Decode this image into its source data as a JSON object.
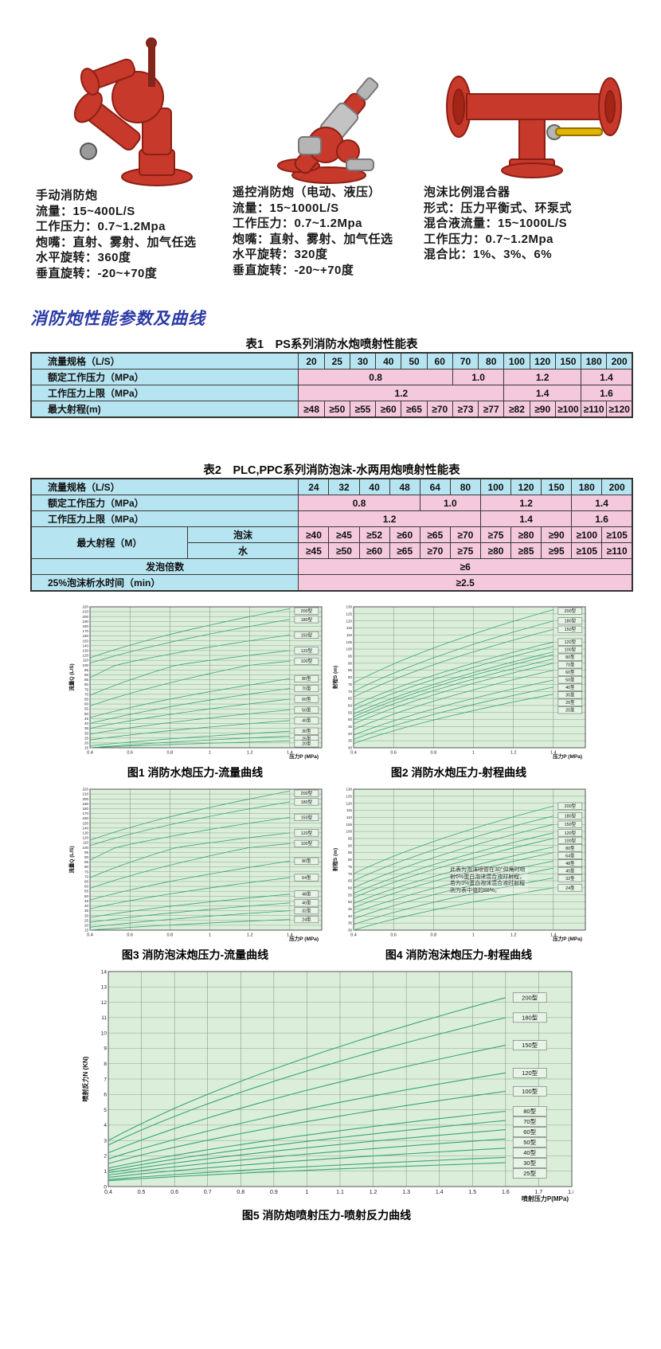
{
  "section_title": "消防炮性能参数及曲线",
  "colors": {
    "heading_blue": "#2b3aa5",
    "table_label_bg": "#b7e4f1",
    "table_value_bg": "#f4c9dd",
    "chart_bg": "#daeeda",
    "curve_green": "#3aa578",
    "product_red": "#c6392b",
    "valve_yellow": "#e0b400"
  },
  "products": [
    {
      "name": "手动消防炮",
      "image": "manual-fire-monitor",
      "specs": [
        "流量：15~400L/S",
        "工作压力：0.7~1.2Mpa",
        "炮嘴：直射、雾射、加气任选",
        "水平旋转：360度",
        "垂直旋转：-20~+70度"
      ]
    },
    {
      "name": "遥控消防炮（电动、液压）",
      "image": "remote-fire-monitor",
      "specs": [
        "流量：15~1000L/S",
        "工作压力：0.7~1.2Mpa",
        "炮嘴：直射、雾射、加气任选",
        "水平旋转：320度",
        "垂直旋转：-20~+70度"
      ]
    },
    {
      "name": "泡沫比例混合器",
      "image": "foam-proportioner",
      "specs": [
        "形式：压力平衡式、环泵式",
        "混合液流量：15~1000L/S",
        "工作压力：0.7~1.2Mpa",
        "混合比：1%、3%、6%"
      ]
    }
  ],
  "table1": {
    "title": "表1　PS系列消防水炮喷射性能表",
    "cols": [
      44.5,
      4.27,
      4.27,
      4.27,
      4.27,
      4.27,
      4.27,
      4.27,
      4.27,
      4.27,
      4.27,
      4.27,
      4.27,
      4.27
    ],
    "rows": [
      {
        "cells": [
          {
            "t": "流量规格（L/S）",
            "cls": "c l"
          },
          {
            "t": "20",
            "cls": "c"
          },
          {
            "t": "25",
            "cls": "c"
          },
          {
            "t": "30",
            "cls": "c"
          },
          {
            "t": "40",
            "cls": "c"
          },
          {
            "t": "50",
            "cls": "c"
          },
          {
            "t": "60",
            "cls": "c"
          },
          {
            "t": "70",
            "cls": "c"
          },
          {
            "t": "80",
            "cls": "c"
          },
          {
            "t": "100",
            "cls": "c"
          },
          {
            "t": "120",
            "cls": "c"
          },
          {
            "t": "150",
            "cls": "c"
          },
          {
            "t": "180",
            "cls": "c"
          },
          {
            "t": "200",
            "cls": "c"
          }
        ]
      },
      {
        "cells": [
          {
            "t": "额定工作压力（MPa）",
            "cls": "c l"
          },
          {
            "t": "0.8",
            "cls": "p",
            "span": 6
          },
          {
            "t": "1.0",
            "cls": "p",
            "span": 2
          },
          {
            "t": "1.2",
            "cls": "p",
            "span": 3
          },
          {
            "t": "1.4",
            "cls": "p",
            "span": 2
          }
        ]
      },
      {
        "cells": [
          {
            "t": "工作压力上限（MPa）",
            "cls": "c l"
          },
          {
            "t": "1.2",
            "cls": "p",
            "span": 8
          },
          {
            "t": "1.4",
            "cls": "p",
            "span": 3
          },
          {
            "t": "1.6",
            "cls": "p",
            "span": 2
          }
        ]
      },
      {
        "cells": [
          {
            "t": "最大射程(m)",
            "cls": "c l"
          },
          {
            "t": "≥48",
            "cls": "p"
          },
          {
            "t": "≥50",
            "cls": "p"
          },
          {
            "t": "≥55",
            "cls": "p"
          },
          {
            "t": "≥60",
            "cls": "p"
          },
          {
            "t": "≥65",
            "cls": "p"
          },
          {
            "t": "≥70",
            "cls": "p"
          },
          {
            "t": "≥73",
            "cls": "p"
          },
          {
            "t": "≥77",
            "cls": "p"
          },
          {
            "t": "≥82",
            "cls": "p"
          },
          {
            "t": "≥90",
            "cls": "p"
          },
          {
            "t": "≥100",
            "cls": "p"
          },
          {
            "t": "≥110",
            "cls": "p"
          },
          {
            "t": "≥120",
            "cls": "p"
          }
        ]
      }
    ]
  },
  "table2": {
    "title": "表2　PLC,PPC系列消防泡沫-水两用炮喷射性能表",
    "cols": [
      26,
      18.5,
      5.05,
      5.05,
      5.05,
      5.05,
      5.05,
      5.05,
      5.05,
      5.05,
      5.05,
      5.05,
      5.05
    ],
    "rows": [
      {
        "cells": [
          {
            "t": "流量规格（L/S）",
            "cls": "c l",
            "span": 2
          },
          {
            "t": "24",
            "cls": "c"
          },
          {
            "t": "32",
            "cls": "c"
          },
          {
            "t": "40",
            "cls": "c"
          },
          {
            "t": "48",
            "cls": "c"
          },
          {
            "t": "64",
            "cls": "c"
          },
          {
            "t": "80",
            "cls": "c"
          },
          {
            "t": "100",
            "cls": "c"
          },
          {
            "t": "120",
            "cls": "c"
          },
          {
            "t": "150",
            "cls": "c"
          },
          {
            "t": "180",
            "cls": "c"
          },
          {
            "t": "200",
            "cls": "c"
          }
        ]
      },
      {
        "cells": [
          {
            "t": "额定工作压力（MPa）",
            "cls": "c l",
            "span": 2
          },
          {
            "t": "0.8",
            "cls": "p",
            "span": 4
          },
          {
            "t": "1.0",
            "cls": "p",
            "span": 2
          },
          {
            "t": "1.2",
            "cls": "p",
            "span": 3
          },
          {
            "t": "1.4",
            "cls": "p",
            "span": 2
          }
        ]
      },
      {
        "cells": [
          {
            "t": "工作压力上限（MPa）",
            "cls": "c l",
            "span": 2
          },
          {
            "t": "1.2",
            "cls": "p",
            "span": 6
          },
          {
            "t": "1.4",
            "cls": "p",
            "span": 3
          },
          {
            "t": "1.6",
            "cls": "p",
            "span": 2
          }
        ]
      },
      {
        "cells": [
          {
            "t": "最大射程（M）",
            "cls": "c",
            "rs": 2
          },
          {
            "t": "泡沫",
            "cls": "c"
          },
          {
            "t": "≥40",
            "cls": "p"
          },
          {
            "t": "≥45",
            "cls": "p"
          },
          {
            "t": "≥52",
            "cls": "p"
          },
          {
            "t": "≥60",
            "cls": "p"
          },
          {
            "t": "≥65",
            "cls": "p"
          },
          {
            "t": "≥70",
            "cls": "p"
          },
          {
            "t": "≥75",
            "cls": "p"
          },
          {
            "t": "≥80",
            "cls": "p"
          },
          {
            "t": "≥90",
            "cls": "p"
          },
          {
            "t": "≥100",
            "cls": "p"
          },
          {
            "t": "≥105",
            "cls": "p"
          }
        ]
      },
      {
        "cells": [
          {
            "t": "水",
            "cls": "c"
          },
          {
            "t": "≥45",
            "cls": "p"
          },
          {
            "t": "≥50",
            "cls": "p"
          },
          {
            "t": "≥60",
            "cls": "p"
          },
          {
            "t": "≥65",
            "cls": "p"
          },
          {
            "t": "≥70",
            "cls": "p"
          },
          {
            "t": "≥75",
            "cls": "p"
          },
          {
            "t": "≥80",
            "cls": "p"
          },
          {
            "t": "≥85",
            "cls": "p"
          },
          {
            "t": "≥95",
            "cls": "p"
          },
          {
            "t": "≥105",
            "cls": "p"
          },
          {
            "t": "≥110",
            "cls": "p"
          }
        ]
      },
      {
        "cells": [
          {
            "t": "发泡倍数",
            "cls": "c",
            "span": 2
          },
          {
            "t": "≥6",
            "cls": "p",
            "span": 11
          }
        ]
      },
      {
        "cells": [
          {
            "t": "25%泡沫析水时间（min）",
            "cls": "c l",
            "span": 2
          },
          {
            "t": "≥2.5",
            "cls": "p",
            "span": 11
          }
        ]
      }
    ]
  },
  "chart_data": [
    {
      "type": "line",
      "caption": "图1 消防水炮压力-流量曲线",
      "ylabel": "流量Q (L/S)",
      "xlabel": "压力P (MPa)",
      "yticks": [
        "220",
        "210",
        "200",
        "190",
        "180",
        "170",
        "160",
        "150",
        "140",
        "130",
        "120",
        "110",
        "100",
        "95",
        "90",
        "85",
        "80",
        "75",
        "70",
        "65",
        "60",
        "55",
        "50",
        "45",
        "40",
        "35",
        "30",
        "25",
        "20",
        "15"
      ],
      "xticks": [
        "0.4",
        "0.6",
        "0.8",
        "1",
        "1.2",
        "1.4"
      ],
      "xtick_vals": [
        0.4,
        0.6,
        0.8,
        1.0,
        1.2,
        1.4
      ],
      "x_min": 0.4,
      "x_axis_max": 1.56,
      "curve_end": 1.4,
      "label_x": 1.42,
      "series": [
        {
          "name": "200型",
          "start": 115,
          "end": 216
        },
        {
          "name": "180型",
          "start": 104,
          "end": 194
        },
        {
          "name": "150型",
          "start": 87,
          "end": 162
        },
        {
          "name": "120型",
          "start": 69,
          "end": 130
        },
        {
          "name": "100型",
          "start": 58,
          "end": 108
        },
        {
          "name": "80型",
          "start": 46,
          "end": 86
        },
        {
          "name": "70型",
          "start": 40,
          "end": 76
        },
        {
          "name": "60型",
          "start": 35,
          "end": 65
        },
        {
          "name": "50型",
          "start": 29,
          "end": 54
        },
        {
          "name": "40型",
          "start": 23,
          "end": 43
        },
        {
          "name": "30型",
          "start": 17,
          "end": 32
        },
        {
          "name": "25型",
          "start": 15,
          "end": 27
        },
        {
          "name": "20型",
          "start": 15,
          "end": 22
        }
      ]
    },
    {
      "type": "line",
      "caption": "图2 消防水炮压力-射程曲线",
      "ylabel": "射程S (m)",
      "xlabel": "压力P (MPa)",
      "yticks": [
        "130",
        "125",
        "120",
        "115",
        "110",
        "105",
        "100",
        "95",
        "90",
        "85",
        "80",
        "75",
        "70",
        "65",
        "60",
        "55",
        "50",
        "45",
        "40",
        "35",
        "30"
      ],
      "xticks": [
        "0.4",
        "0.6",
        "0.8",
        "1",
        "1.2",
        "1.4"
      ],
      "xtick_vals": [
        0.4,
        0.6,
        0.8,
        1.0,
        1.2,
        1.4
      ],
      "x_min": 0.4,
      "x_axis_max": 1.56,
      "curve_end": 1.4,
      "label_x": 1.42,
      "series": [
        {
          "name": "200型",
          "start": 76,
          "end": 128
        },
        {
          "name": "180型",
          "start": 70,
          "end": 120
        },
        {
          "name": "150型",
          "start": 66,
          "end": 114
        },
        {
          "name": "120型",
          "start": 60,
          "end": 105
        },
        {
          "name": "100型",
          "start": 57,
          "end": 102
        },
        {
          "name": "80型",
          "start": 54,
          "end": 98
        },
        {
          "name": "70型",
          "start": 52,
          "end": 96
        },
        {
          "name": "60型",
          "start": 50,
          "end": 93
        },
        {
          "name": "50型",
          "start": 47,
          "end": 90
        },
        {
          "name": "40型",
          "start": 43,
          "end": 85
        },
        {
          "name": "30型",
          "start": 39,
          "end": 78
        },
        {
          "name": "25型",
          "start": 36,
          "end": 73
        },
        {
          "name": "20型",
          "start": 33,
          "end": 68
        }
      ]
    },
    {
      "type": "line",
      "caption": "图3 消防泡沫炮压力-流量曲线",
      "ylabel": "流量Q (L/S)",
      "xlabel": "压力P (MPa)",
      "yticks": [
        "220",
        "210",
        "200",
        "190",
        "180",
        "170",
        "160",
        "150",
        "140",
        "130",
        "120",
        "110",
        "100",
        "95",
        "90",
        "85",
        "80",
        "75",
        "70",
        "65",
        "60",
        "55",
        "50",
        "45",
        "40",
        "35",
        "30",
        "25",
        "20",
        "15"
      ],
      "xticks": [
        "0.4",
        "0.6",
        "0.8",
        "1",
        "1.2",
        "1.4"
      ],
      "xtick_vals": [
        0.4,
        0.6,
        0.8,
        1.0,
        1.2,
        1.4
      ],
      "x_min": 0.4,
      "x_axis_max": 1.56,
      "curve_end": 1.4,
      "label_x": 1.42,
      "series": [
        {
          "name": "200型",
          "start": 115,
          "end": 216
        },
        {
          "name": "180型",
          "start": 104,
          "end": 194
        },
        {
          "name": "150型",
          "start": 87,
          "end": 162
        },
        {
          "name": "120型",
          "start": 69,
          "end": 130
        },
        {
          "name": "100型",
          "start": 58,
          "end": 108
        },
        {
          "name": "80型",
          "start": 46,
          "end": 86
        },
        {
          "name": "64型",
          "start": 37,
          "end": 69
        },
        {
          "name": "48型",
          "start": 28,
          "end": 52
        },
        {
          "name": "40型",
          "start": 23,
          "end": 43
        },
        {
          "name": "32型",
          "start": 18,
          "end": 35
        },
        {
          "name": "24型",
          "start": 15,
          "end": 26
        }
      ]
    },
    {
      "type": "line",
      "caption": "图4 消防泡沫炮压力-射程曲线",
      "ylabel": "射程S (m)",
      "xlabel": "压力P (MPa)",
      "note": "此表为泡沫喷管在30°仰角时喷射6%蛋白泡沫混合液时射程，若为3%蛋白泡沫混合液时射程则为表中值的88%。",
      "yticks": [
        "130",
        "125",
        "120",
        "115",
        "110",
        "105",
        "100",
        "95",
        "90",
        "85",
        "80",
        "75",
        "70",
        "65",
        "60",
        "55",
        "50",
        "45",
        "40",
        "35",
        "30"
      ],
      "xticks": [
        "0.4",
        "0.6",
        "0.8",
        "1",
        "1.2",
        "1.4"
      ],
      "xtick_vals": [
        0.4,
        0.6,
        0.8,
        1.0,
        1.2,
        1.4
      ],
      "x_min": 0.4,
      "x_axis_max": 1.56,
      "curve_end": 1.4,
      "label_x": 1.42,
      "series": [
        {
          "name": "200型",
          "start": 70,
          "end": 118
        },
        {
          "name": "180型",
          "start": 65,
          "end": 111
        },
        {
          "name": "150型",
          "start": 60,
          "end": 105
        },
        {
          "name": "120型",
          "start": 56,
          "end": 99
        },
        {
          "name": "100型",
          "start": 53,
          "end": 95
        },
        {
          "name": "80型",
          "start": 49,
          "end": 89
        },
        {
          "name": "64型",
          "start": 46,
          "end": 85
        },
        {
          "name": "48型",
          "start": 42,
          "end": 79
        },
        {
          "name": "40型",
          "start": 38,
          "end": 74
        },
        {
          "name": "32型",
          "start": 34,
          "end": 67
        },
        {
          "name": "24型",
          "start": 30,
          "end": 60
        }
      ]
    },
    {
      "type": "line",
      "caption": "图5 消防炮喷射压力-喷射反力曲线",
      "ylabel": "喷射反力N (KN)",
      "xlabel": "喷射压力P(MPa)",
      "yticks": [
        "14",
        "13",
        "12",
        "11",
        "10",
        "9",
        "8",
        "7",
        "6",
        "5",
        "4",
        "3",
        "2",
        "1",
        "0"
      ],
      "xticks": [
        "0.4",
        "0.5",
        "0.6",
        "0.7",
        "0.8",
        "0.9",
        "1",
        "1.1",
        "1.2",
        "1.3",
        "1.4",
        "1.5",
        "1.6",
        "1.7",
        "1.8"
      ],
      "xtick_vals": [
        0.4,
        0.5,
        0.6,
        0.7,
        0.8,
        0.9,
        1.0,
        1.1,
        1.2,
        1.3,
        1.4,
        1.5,
        1.6,
        1.7,
        1.8
      ],
      "x_min": 0.4,
      "x_axis_max": 1.8,
      "curve_end": 1.6,
      "label_x": 1.62,
      "series": [
        {
          "name": "200型",
          "start": 3.0,
          "end": 12.3
        },
        {
          "name": "180型",
          "start": 2.7,
          "end": 11.0
        },
        {
          "name": "150型",
          "start": 2.2,
          "end": 9.2
        },
        {
          "name": "120型",
          "start": 1.8,
          "end": 7.4
        },
        {
          "name": "100型",
          "start": 1.5,
          "end": 6.2
        },
        {
          "name": "80型",
          "start": 1.2,
          "end": 4.9
        },
        {
          "name": "70型",
          "start": 1.05,
          "end": 4.3
        },
        {
          "name": "60型",
          "start": 0.9,
          "end": 3.7
        },
        {
          "name": "50型",
          "start": 0.75,
          "end": 3.1
        },
        {
          "name": "40型",
          "start": 0.6,
          "end": 2.5
        },
        {
          "name": "30型",
          "start": 0.45,
          "end": 1.9
        },
        {
          "name": "25型",
          "start": 0.38,
          "end": 1.55
        }
      ]
    }
  ]
}
